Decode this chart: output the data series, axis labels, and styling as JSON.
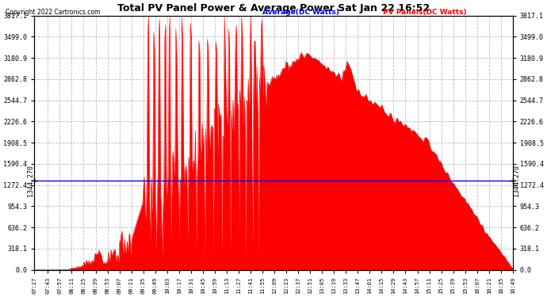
{
  "title": "Total PV Panel Power & Average Power Sat Jan 22 16:52",
  "copyright": "Copyright 2022 Cartronics.com",
  "legend_avg": "Average(DC Watts)",
  "legend_pv": "PV Panels(DC Watts)",
  "avg_value": 1344.27,
  "y_max": 3817.1,
  "y_min": 0.0,
  "yticks": [
    0.0,
    318.1,
    636.2,
    954.3,
    1272.4,
    1590.4,
    1908.5,
    2226.6,
    2544.7,
    2862.8,
    3180.9,
    3499.0,
    3817.1
  ],
  "ytick_labels": [
    "0.0",
    "318.1",
    "636.2",
    "954.3",
    "1272.4",
    "1590.4",
    "1908.5",
    "2226.6",
    "2544.7",
    "2862.8",
    "3180.9",
    "3499.0",
    "3817.1"
  ],
  "xtick_labels": [
    "07:27",
    "07:43",
    "07:57",
    "08:11",
    "08:25",
    "08:39",
    "08:53",
    "09:07",
    "09:21",
    "09:35",
    "09:49",
    "10:03",
    "10:17",
    "10:31",
    "10:45",
    "10:59",
    "11:13",
    "11:27",
    "11:41",
    "11:55",
    "12:09",
    "12:23",
    "12:37",
    "12:51",
    "13:05",
    "13:19",
    "13:33",
    "13:47",
    "14:01",
    "14:15",
    "14:29",
    "14:43",
    "14:57",
    "15:11",
    "15:25",
    "15:39",
    "15:53",
    "16:07",
    "16:21",
    "16:35",
    "16:49"
  ],
  "bg_color": "#ffffff",
  "fill_color": "#ff0000",
  "line_color": "#ff0000",
  "avg_line_color": "#0000ff",
  "grid_color": "#bbbbbb",
  "title_color": "#000000",
  "copyright_color": "#000000",
  "avg_label_color": "#0000ff",
  "pv_label_color": "#ff0000",
  "yaxis_label_color": "#000000"
}
